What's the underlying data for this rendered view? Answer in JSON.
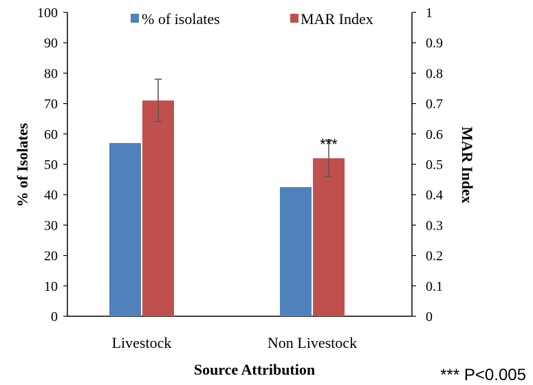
{
  "chart_data": {
    "type": "bar",
    "categories": [
      "Livestock",
      "Non Livestock"
    ],
    "series": [
      {
        "name": "% of isolates",
        "axis": "left",
        "color": "#4f81bd",
        "values": [
          57,
          42.5
        ]
      },
      {
        "name": "MAR Index",
        "axis": "right",
        "color": "#c0504d",
        "values": [
          0.71,
          0.52
        ],
        "error": [
          [
            0.64,
            0.78
          ],
          [
            0.46,
            0.58
          ]
        ]
      }
    ],
    "xlabel": "Source Attribution",
    "ylabel": "% of Isolates",
    "y2label": "MAR Index",
    "ylim": [
      0,
      100
    ],
    "y2lim": [
      0,
      1
    ],
    "yticks": [
      "0",
      "10",
      "20",
      "30",
      "40",
      "50",
      "60",
      "70",
      "80",
      "90",
      "100"
    ],
    "y2ticks": [
      "0",
      "0.1",
      "0.2",
      "0.3",
      "0.4",
      "0.5",
      "0.6",
      "0.7",
      "0.8",
      "0.9",
      "1"
    ],
    "annotations": [
      {
        "text": "***",
        "category": "Non Livestock",
        "series": "MAR Index"
      }
    ],
    "footnote": "*** P<0.005",
    "legend": "top-center",
    "grid": false
  }
}
